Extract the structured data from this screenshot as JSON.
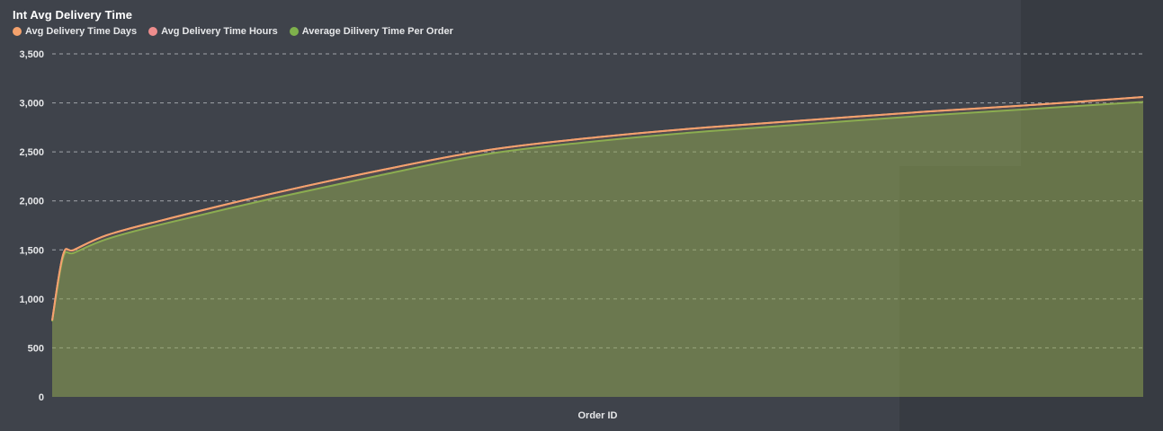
{
  "chart_data": {
    "type": "area",
    "title": "Int Avg Delivery Time",
    "xlabel": "Order ID",
    "ylabel": "",
    "ylim": [
      0,
      3500
    ],
    "yticks": [
      "0",
      "500",
      "1,000",
      "1,500",
      "2,000",
      "2,500",
      "3,000",
      "3,500"
    ],
    "ytick_values": [
      0,
      500,
      1000,
      1500,
      2000,
      2500,
      3000,
      3500
    ],
    "grid": true,
    "legend_position": "top-left",
    "x": [
      0,
      1,
      2,
      5,
      10,
      20,
      30,
      40,
      50,
      60,
      70,
      80,
      90,
      100
    ],
    "series": [
      {
        "name": "Avg Delivery Time Days",
        "color": "#f4a26d",
        "values": [
          780,
          1450,
          1500,
          1650,
          1800,
          2070,
          2310,
          2520,
          2650,
          2750,
          2830,
          2910,
          2980,
          3060
        ]
      },
      {
        "name": "Avg Delivery Time Hours",
        "color": "#ee8d8d",
        "values": [
          780,
          1450,
          1500,
          1650,
          1800,
          2070,
          2310,
          2520,
          2650,
          2750,
          2830,
          2910,
          2980,
          3060
        ]
      },
      {
        "name": "Average Dilivery Time Per Order",
        "color": "#7fb14c",
        "values": [
          770,
          1420,
          1470,
          1610,
          1760,
          2020,
          2260,
          2480,
          2610,
          2710,
          2790,
          2870,
          2940,
          3010
        ]
      }
    ]
  }
}
